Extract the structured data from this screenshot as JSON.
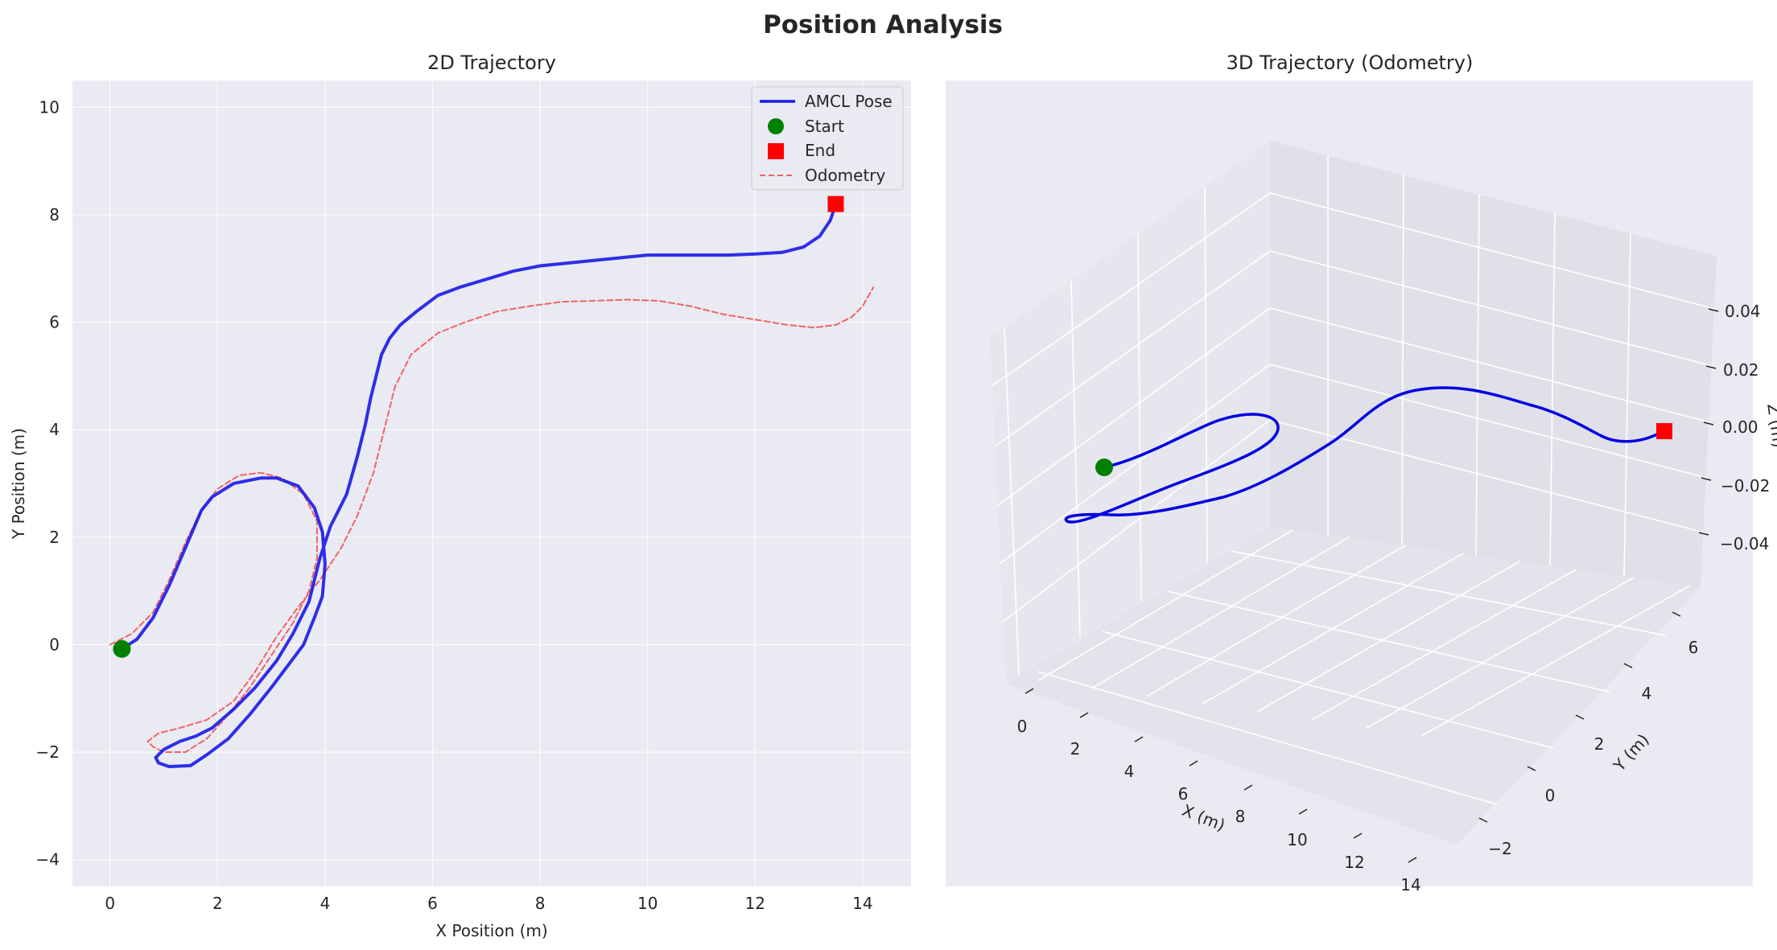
{
  "figure": {
    "title": "Position Analysis"
  },
  "colors": {
    "amcl": "#1a1ae6",
    "odom": "#f06464",
    "start": "#008000",
    "end": "#ff0000",
    "traj3d": "#0000e0",
    "panel_bg": "#eaeaf2",
    "grid": "#ffffff"
  },
  "chart_data": [
    {
      "type": "line",
      "title": "2D Trajectory",
      "xlabel": "X Position (m)",
      "ylabel": "Y Position (m)",
      "xlim": [
        -0.7,
        14.9
      ],
      "ylim": [
        -4.5,
        10.5
      ],
      "xticks": [
        0,
        2,
        4,
        6,
        8,
        10,
        12,
        14
      ],
      "yticks": [
        -4,
        -2,
        0,
        2,
        4,
        6,
        8,
        10
      ],
      "xtick_labels": [
        "0",
        "2",
        "4",
        "6",
        "8",
        "10",
        "12",
        "14"
      ],
      "ytick_labels": [
        "−4",
        "−2",
        "0",
        "2",
        "4",
        "6",
        "8",
        "10"
      ],
      "grid": true,
      "legend": {
        "placement": "top-right",
        "entries": [
          "AMCL Pose",
          "Start",
          "End",
          "Odometry"
        ]
      },
      "series": [
        {
          "name": "AMCL Pose",
          "style": "solid",
          "x": [
            0.22,
            0.5,
            0.8,
            1.1,
            1.4,
            1.7,
            1.9,
            2.3,
            2.8,
            3.1,
            3.5,
            3.8,
            3.95,
            4.0,
            3.95,
            3.8,
            3.6,
            3.3,
            3.0,
            2.6,
            2.2,
            1.8,
            1.5,
            1.1,
            0.9,
            0.85,
            1.0,
            1.3,
            1.6,
            1.9,
            2.3,
            2.7,
            3.1,
            3.4,
            3.7,
            3.9,
            4.1,
            4.4,
            4.6,
            4.75,
            4.85,
            4.95,
            5.05,
            5.2,
            5.4,
            5.7,
            6.1,
            6.5,
            7.0,
            7.5,
            8.0,
            8.5,
            9.0,
            9.5,
            10.0,
            10.5,
            11.0,
            11.5,
            12.0,
            12.5,
            12.9,
            13.2,
            13.4,
            13.5
          ],
          "y": [
            -0.08,
            0.1,
            0.5,
            1.1,
            1.8,
            2.5,
            2.75,
            3.0,
            3.1,
            3.1,
            2.95,
            2.55,
            2.1,
            1.5,
            0.9,
            0.5,
            0.0,
            -0.4,
            -0.8,
            -1.3,
            -1.75,
            -2.05,
            -2.25,
            -2.27,
            -2.2,
            -2.1,
            -1.95,
            -1.8,
            -1.7,
            -1.55,
            -1.2,
            -0.8,
            -0.3,
            0.2,
            0.8,
            1.6,
            2.2,
            2.8,
            3.5,
            4.1,
            4.6,
            5.0,
            5.4,
            5.7,
            5.95,
            6.2,
            6.5,
            6.65,
            6.8,
            6.95,
            7.05,
            7.1,
            7.15,
            7.2,
            7.25,
            7.25,
            7.25,
            7.25,
            7.27,
            7.3,
            7.4,
            7.6,
            7.9,
            8.2
          ]
        },
        {
          "name": "Odometry",
          "style": "dashed",
          "x": [
            0.0,
            0.4,
            0.8,
            1.1,
            1.4,
            1.7,
            2.0,
            2.4,
            2.8,
            3.2,
            3.6,
            3.85,
            3.85,
            3.7,
            3.4,
            3.0,
            2.6,
            2.2,
            1.8,
            1.4,
            1.0,
            0.8,
            0.7,
            0.9,
            1.3,
            1.8,
            2.3,
            2.7,
            3.1,
            3.5,
            3.9,
            4.3,
            4.6,
            4.9,
            5.1,
            5.3,
            5.6,
            6.1,
            6.6,
            7.2,
            7.8,
            8.4,
            9.0,
            9.6,
            10.2,
            10.8,
            11.4,
            12.0,
            12.6,
            13.1,
            13.5,
            13.8,
            14.0,
            14.2
          ],
          "y": [
            0.0,
            0.2,
            0.6,
            1.2,
            1.9,
            2.5,
            2.9,
            3.15,
            3.2,
            3.1,
            2.8,
            2.3,
            1.6,
            1.0,
            0.4,
            -0.2,
            -0.8,
            -1.3,
            -1.75,
            -2.0,
            -2.0,
            -1.9,
            -1.8,
            -1.65,
            -1.55,
            -1.4,
            -1.05,
            -0.5,
            0.15,
            0.7,
            1.2,
            1.8,
            2.4,
            3.2,
            4.0,
            4.8,
            5.4,
            5.8,
            6.0,
            6.2,
            6.3,
            6.38,
            6.4,
            6.42,
            6.4,
            6.3,
            6.15,
            6.05,
            5.95,
            5.9,
            5.95,
            6.1,
            6.3,
            6.65
          ]
        }
      ],
      "markers": [
        {
          "name": "Start",
          "x": 0.22,
          "y": -0.08
        },
        {
          "name": "End",
          "x": 13.5,
          "y": 8.2
        }
      ]
    },
    {
      "type": "line",
      "title": "3D Trajectory (Odometry)",
      "xlabel": "X (m)",
      "ylabel": "Y (m)",
      "zlabel": "Z (m)",
      "xticks": [
        "0",
        "2",
        "4",
        "6",
        "8",
        "10",
        "12",
        "14"
      ],
      "yticks": [
        "−2",
        "0",
        "2",
        "4",
        "6"
      ],
      "zticks": [
        "0.04",
        "0.02",
        "0.00",
        "−0.02",
        "−0.04"
      ],
      "xlim": [
        -0.7,
        14.9
      ],
      "ylim": [
        -2.5,
        7.0
      ],
      "zlim": [
        -0.05,
        0.05
      ],
      "z_values": "all points at z = 0.00",
      "grid": true,
      "series": [
        {
          "name": "Odometry",
          "path": "same x/y as Odometry series in 2D Trajectory",
          "z": 0.0
        }
      ],
      "markers": [
        {
          "name": "Start",
          "x": 0.0,
          "y": 0.0,
          "z": 0.0
        },
        {
          "name": "End",
          "x": 14.2,
          "y": 6.65,
          "z": 0.0
        }
      ]
    }
  ]
}
